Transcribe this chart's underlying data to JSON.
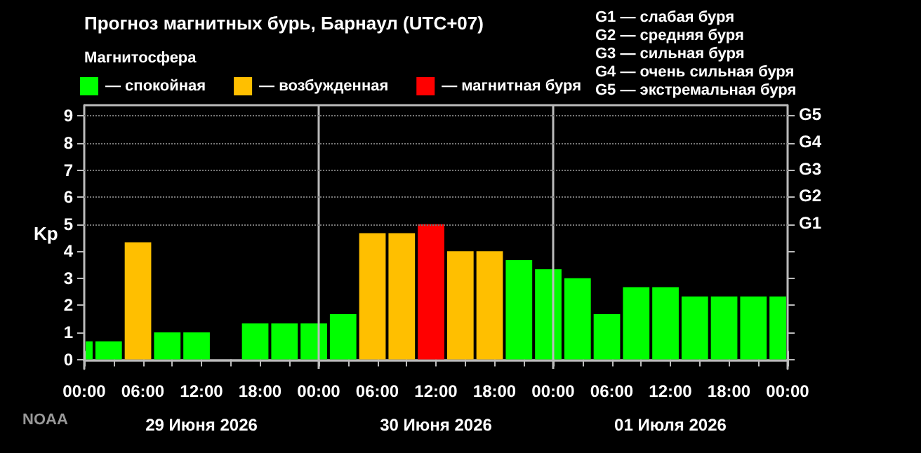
{
  "chart_data": {
    "type": "bar",
    "title": "Прогноз магнитных бурь, Барнаул (UTC+07)",
    "legend_title": "Магнитосфера",
    "ylabel": "Kp",
    "x": [
      "2026-06-29T00:30",
      "2026-06-29T02:30",
      "2026-06-29T05:30",
      "2026-06-29T08:30",
      "2026-06-29T11:30",
      "2026-06-29T14:30",
      "2026-06-29T17:30",
      "2026-06-29T20:30",
      "2026-06-29T23:30",
      "2026-06-30T02:30",
      "2026-06-30T05:30",
      "2026-06-30T08:30",
      "2026-06-30T11:30",
      "2026-06-30T14:30",
      "2026-06-30T17:30",
      "2026-06-30T20:30",
      "2026-06-30T23:30",
      "2026-07-01T02:30",
      "2026-07-01T05:30",
      "2026-07-01T08:30",
      "2026-07-01T11:30",
      "2026-07-01T14:30",
      "2026-07-01T17:30",
      "2026-07-01T20:30",
      "2026-07-01T23:00"
    ],
    "series": [
      {
        "name": "— спокойная",
        "color": "#00ff00",
        "values": [
          0.67,
          0.67,
          null,
          1.0,
          1.0,
          null,
          1.33,
          1.33,
          1.33,
          1.67,
          null,
          null,
          null,
          null,
          null,
          3.67,
          3.33,
          3.0,
          1.67,
          2.67,
          2.67,
          2.33,
          2.33,
          2.33,
          2.33
        ]
      },
      {
        "name": "— возбужденная",
        "color": "#ffbf00",
        "values": [
          null,
          null,
          4.33,
          null,
          null,
          null,
          null,
          null,
          null,
          null,
          4.67,
          4.67,
          null,
          4.0,
          4.0,
          null,
          null,
          null,
          null,
          null,
          null,
          null,
          null,
          null,
          null
        ]
      },
      {
        "name": "— магнитная буря",
        "color": "#ff0000",
        "values": [
          null,
          null,
          null,
          null,
          null,
          null,
          null,
          null,
          null,
          null,
          null,
          null,
          5.0,
          null,
          null,
          null,
          null,
          null,
          null,
          null,
          null,
          null,
          null,
          null,
          null
        ]
      }
    ],
    "xlim": [
      "2026-06-29T00:00",
      "2026-07-02T00:00"
    ],
    "xticks": [
      {
        "value": "2026-06-29T00:00",
        "label": "00:00"
      },
      {
        "value": "2026-06-29T03:00",
        "label": null
      },
      {
        "value": "2026-06-29T06:00",
        "label": "06:00"
      },
      {
        "value": "2026-06-29T09:00",
        "label": null
      },
      {
        "value": "2026-06-29T12:00",
        "label": "12:00"
      },
      {
        "value": "2026-06-29T15:00",
        "label": null
      },
      {
        "value": "2026-06-29T18:00",
        "label": "18:00"
      },
      {
        "value": "2026-06-29T21:00",
        "label": null
      },
      {
        "value": "2026-06-30T00:00",
        "label": "00:00"
      },
      {
        "value": "2026-06-30T03:00",
        "label": null
      },
      {
        "value": "2026-06-30T06:00",
        "label": "06:00"
      },
      {
        "value": "2026-06-30T09:00",
        "label": null
      },
      {
        "value": "2026-06-30T12:00",
        "label": "12:00"
      },
      {
        "value": "2026-06-30T15:00",
        "label": null
      },
      {
        "value": "2026-06-30T18:00",
        "label": "18:00"
      },
      {
        "value": "2026-06-30T21:00",
        "label": null
      },
      {
        "value": "2026-07-01T00:00",
        "label": "00:00"
      },
      {
        "value": "2026-07-01T03:00",
        "label": null
      },
      {
        "value": "2026-07-01T06:00",
        "label": "06:00"
      },
      {
        "value": "2026-07-01T09:00",
        "label": null
      },
      {
        "value": "2026-07-01T12:00",
        "label": "12:00"
      },
      {
        "value": "2026-07-01T15:00",
        "label": null
      },
      {
        "value": "2026-07-01T18:00",
        "label": "18:00"
      },
      {
        "value": "2026-07-01T21:00",
        "label": null
      },
      {
        "value": "2026-07-02T00:00",
        "label": "00:00"
      }
    ],
    "x2lim": [
      "2026-06-29T00:00",
      "2026-07-02T00:00"
    ],
    "x2ticks": [
      {
        "value": "2026-06-29T00:00",
        "label": null
      },
      {
        "value": "2026-06-29T12:00",
        "label": "29 Июня 2026"
      },
      {
        "value": "2026-06-30T00:00",
        "label": null
      },
      {
        "value": "2026-06-30T12:00",
        "label": "30 Июня 2026"
      },
      {
        "value": "2026-07-01T00:00",
        "label": null
      },
      {
        "value": "2026-07-01T12:00",
        "label": "01 Июля 2026"
      },
      {
        "value": "2026-07-02T00:00",
        "label": null
      }
    ],
    "ylim": [
      -0.35,
      9.4
    ],
    "yticks": [
      0,
      1,
      2,
      3,
      4,
      5,
      6,
      7,
      8,
      9
    ],
    "ref_lines": [
      {
        "axis": "x",
        "value": "2026-06-30T00:00",
        "label": null,
        "color": "#bbbbbb"
      },
      {
        "axis": "x",
        "value": "2026-07-01T00:00",
        "label": null,
        "color": "#bbbbbb"
      }
    ],
    "grid": "y",
    "legend": "top left",
    "annotations": [
      "G1",
      "G2",
      "G3",
      "G4",
      "G5",
      "G1 — слабая буря",
      "G2 — средняя буря",
      "G3 — сильная буря",
      "G4 — очень сильная буря",
      "G5 — экстремальная буря",
      "NOAA"
    ]
  }
}
